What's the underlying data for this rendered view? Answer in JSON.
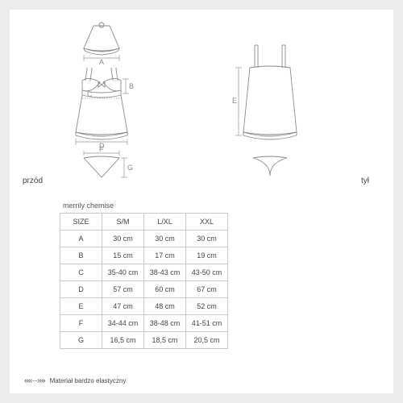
{
  "labels": {
    "front": "przód",
    "back": "tył"
  },
  "table": {
    "title": "merrily chemise",
    "headers": [
      "SIZE",
      "S/M",
      "L/XL",
      "XXL"
    ],
    "rows": [
      [
        "A",
        "30 cm",
        "30 cm",
        "30 cm"
      ],
      [
        "B",
        "15 cm",
        "17 cm",
        "19 cm"
      ],
      [
        "C",
        "35-40 cm",
        "38-43 cm",
        "43-50 cm"
      ],
      [
        "D",
        "57 cm",
        "60 cm",
        "67 cm"
      ],
      [
        "E",
        "47 cm",
        "48 cm",
        "52 cm"
      ],
      [
        "F",
        "34-44 cm",
        "38-48 cm",
        "41-51 cm"
      ],
      [
        "G",
        "16,5 cm",
        "18,5 cm",
        "20,5 cm"
      ]
    ]
  },
  "dims": {
    "A": "A",
    "B": "B",
    "C": "C",
    "D": "D",
    "E": "E",
    "F": "F",
    "G": "G"
  },
  "footer": {
    "symbol": "‹‹‹‹···››››",
    "text": "Materiał bardzo elastyczny"
  },
  "style": {
    "stroke": "#8a8a8a",
    "thin": "0.9",
    "dim": "#999",
    "dimw": "0.7"
  }
}
